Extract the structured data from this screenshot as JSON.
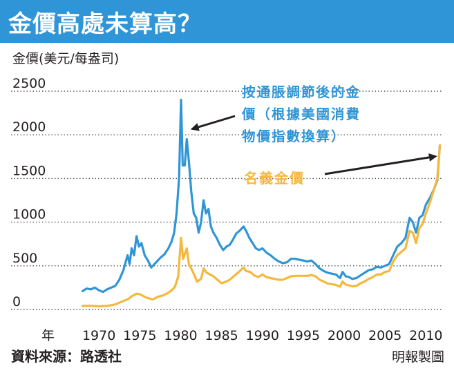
{
  "header": {
    "title": "金價高處未算高？",
    "bar_color": "#2f95d6"
  },
  "footer": {
    "source": "資料來源：路透社",
    "credit": "明報製圖"
  },
  "chart_data": {
    "type": "line",
    "ylabel": "金價(美元/每盎司)",
    "xlabel": "",
    "x_axis_prefix": "年",
    "xlim": [
      1965,
      2012
    ],
    "ylim": [
      0,
      2500
    ],
    "y_ticks": [
      0,
      500,
      1000,
      1500,
      2000,
      2500
    ],
    "x_ticks": [
      1970,
      1975,
      1980,
      1985,
      1990,
      1995,
      2000,
      2005,
      2010
    ],
    "grid": "horizontal-dotted",
    "series": [
      {
        "id": "real",
        "label_lines": [
          "按通脹調節後的金",
          "價（根據美國消費",
          "物價指數換算）"
        ],
        "color": "#2f95d6",
        "points": [
          [
            1968.0,
            210
          ],
          [
            1968.5,
            240
          ],
          [
            1969.0,
            230
          ],
          [
            1969.5,
            250
          ],
          [
            1970.0,
            220
          ],
          [
            1970.5,
            200
          ],
          [
            1971.0,
            230
          ],
          [
            1971.5,
            250
          ],
          [
            1972.0,
            270
          ],
          [
            1972.5,
            340
          ],
          [
            1973.0,
            450
          ],
          [
            1973.5,
            620
          ],
          [
            1973.75,
            520
          ],
          [
            1974.0,
            700
          ],
          [
            1974.3,
            620
          ],
          [
            1974.6,
            840
          ],
          [
            1974.9,
            720
          ],
          [
            1975.2,
            760
          ],
          [
            1975.6,
            620
          ],
          [
            1976.0,
            560
          ],
          [
            1976.4,
            480
          ],
          [
            1976.8,
            520
          ],
          [
            1977.2,
            560
          ],
          [
            1977.6,
            600
          ],
          [
            1978.0,
            630
          ],
          [
            1978.5,
            700
          ],
          [
            1978.9,
            780
          ],
          [
            1979.2,
            880
          ],
          [
            1979.5,
            1100
          ],
          [
            1979.8,
            1500
          ],
          [
            1980.05,
            2400
          ],
          [
            1980.25,
            1650
          ],
          [
            1980.5,
            1650
          ],
          [
            1980.75,
            1950
          ],
          [
            1981.0,
            1700
          ],
          [
            1981.3,
            1350
          ],
          [
            1981.6,
            1100
          ],
          [
            1981.9,
            1050
          ],
          [
            1982.2,
            880
          ],
          [
            1982.5,
            1000
          ],
          [
            1982.8,
            1250
          ],
          [
            1983.1,
            1100
          ],
          [
            1983.4,
            1150
          ],
          [
            1983.7,
            950
          ],
          [
            1984.0,
            880
          ],
          [
            1984.4,
            820
          ],
          [
            1984.8,
            740
          ],
          [
            1985.2,
            680
          ],
          [
            1985.6,
            720
          ],
          [
            1986.0,
            740
          ],
          [
            1986.4,
            800
          ],
          [
            1986.8,
            870
          ],
          [
            1987.2,
            900
          ],
          [
            1987.7,
            950
          ],
          [
            1988.0,
            900
          ],
          [
            1988.4,
            820
          ],
          [
            1988.8,
            760
          ],
          [
            1989.2,
            700
          ],
          [
            1989.6,
            680
          ],
          [
            1990.0,
            700
          ],
          [
            1990.5,
            650
          ],
          [
            1991.0,
            620
          ],
          [
            1991.5,
            580
          ],
          [
            1992.0,
            550
          ],
          [
            1992.5,
            530
          ],
          [
            1993.0,
            540
          ],
          [
            1993.5,
            580
          ],
          [
            1994.0,
            580
          ],
          [
            1994.5,
            570
          ],
          [
            1995.0,
            560
          ],
          [
            1995.5,
            550
          ],
          [
            1996.0,
            560
          ],
          [
            1996.5,
            520
          ],
          [
            1997.0,
            470
          ],
          [
            1997.5,
            440
          ],
          [
            1998.0,
            420
          ],
          [
            1998.5,
            410
          ],
          [
            1999.0,
            400
          ],
          [
            1999.5,
            360
          ],
          [
            1999.8,
            430
          ],
          [
            2000.2,
            380
          ],
          [
            2000.6,
            370
          ],
          [
            2001.0,
            350
          ],
          [
            2001.5,
            360
          ],
          [
            2002.0,
            390
          ],
          [
            2002.5,
            420
          ],
          [
            2003.0,
            450
          ],
          [
            2003.5,
            460
          ],
          [
            2004.0,
            490
          ],
          [
            2004.5,
            480
          ],
          [
            2005.0,
            500
          ],
          [
            2005.5,
            520
          ],
          [
            2006.0,
            620
          ],
          [
            2006.5,
            720
          ],
          [
            2007.0,
            760
          ],
          [
            2007.5,
            820
          ],
          [
            2008.0,
            1050
          ],
          [
            2008.4,
            1000
          ],
          [
            2008.8,
            880
          ],
          [
            2009.2,
            1050
          ],
          [
            2009.6,
            1080
          ],
          [
            2010.0,
            1200
          ],
          [
            2010.5,
            1280
          ],
          [
            2011.0,
            1380
          ],
          [
            2011.4,
            1480
          ],
          [
            2011.7,
            1880
          ]
        ]
      },
      {
        "id": "nominal",
        "label": "名義金價",
        "color": "#f6b73c",
        "points": [
          [
            1968.0,
            40
          ],
          [
            1969.0,
            42
          ],
          [
            1970.0,
            36
          ],
          [
            1971.0,
            40
          ],
          [
            1972.0,
            58
          ],
          [
            1973.0,
            97
          ],
          [
            1973.6,
            120
          ],
          [
            1974.0,
            150
          ],
          [
            1974.6,
            180
          ],
          [
            1975.0,
            175
          ],
          [
            1975.6,
            145
          ],
          [
            1976.0,
            130
          ],
          [
            1976.6,
            115
          ],
          [
            1977.2,
            145
          ],
          [
            1977.8,
            160
          ],
          [
            1978.4,
            185
          ],
          [
            1978.9,
            220
          ],
          [
            1979.3,
            260
          ],
          [
            1979.7,
            380
          ],
          [
            1980.05,
            820
          ],
          [
            1980.3,
            580
          ],
          [
            1980.75,
            700
          ],
          [
            1981.0,
            520
          ],
          [
            1981.5,
            430
          ],
          [
            1982.0,
            320
          ],
          [
            1982.5,
            350
          ],
          [
            1982.8,
            470
          ],
          [
            1983.2,
            420
          ],
          [
            1983.6,
            400
          ],
          [
            1984.0,
            380
          ],
          [
            1984.5,
            340
          ],
          [
            1985.0,
            300
          ],
          [
            1985.6,
            320
          ],
          [
            1986.0,
            340
          ],
          [
            1986.5,
            380
          ],
          [
            1987.0,
            420
          ],
          [
            1987.7,
            480
          ],
          [
            1988.0,
            440
          ],
          [
            1988.5,
            430
          ],
          [
            1989.0,
            390
          ],
          [
            1989.5,
            370
          ],
          [
            1990.0,
            400
          ],
          [
            1990.5,
            370
          ],
          [
            1991.0,
            360
          ],
          [
            1991.5,
            350
          ],
          [
            1992.0,
            340
          ],
          [
            1992.5,
            340
          ],
          [
            1993.0,
            360
          ],
          [
            1993.5,
            380
          ],
          [
            1994.0,
            385
          ],
          [
            1994.5,
            385
          ],
          [
            1995.0,
            385
          ],
          [
            1995.5,
            385
          ],
          [
            1996.0,
            395
          ],
          [
            1996.5,
            380
          ],
          [
            1997.0,
            340
          ],
          [
            1997.5,
            320
          ],
          [
            1998.0,
            295
          ],
          [
            1998.5,
            290
          ],
          [
            1999.0,
            280
          ],
          [
            1999.5,
            260
          ],
          [
            1999.8,
            320
          ],
          [
            2000.2,
            285
          ],
          [
            2000.6,
            275
          ],
          [
            2001.0,
            265
          ],
          [
            2001.5,
            270
          ],
          [
            2002.0,
            300
          ],
          [
            2002.5,
            320
          ],
          [
            2003.0,
            350
          ],
          [
            2003.5,
            370
          ],
          [
            2004.0,
            400
          ],
          [
            2004.5,
            400
          ],
          [
            2005.0,
            430
          ],
          [
            2005.5,
            440
          ],
          [
            2006.0,
            550
          ],
          [
            2006.5,
            620
          ],
          [
            2007.0,
            660
          ],
          [
            2007.5,
            700
          ],
          [
            2008.0,
            900
          ],
          [
            2008.4,
            880
          ],
          [
            2008.8,
            760
          ],
          [
            2009.2,
            930
          ],
          [
            2009.6,
            980
          ],
          [
            2010.0,
            1100
          ],
          [
            2010.5,
            1230
          ],
          [
            2011.0,
            1380
          ],
          [
            2011.4,
            1500
          ],
          [
            2011.7,
            1880
          ]
        ]
      }
    ]
  }
}
